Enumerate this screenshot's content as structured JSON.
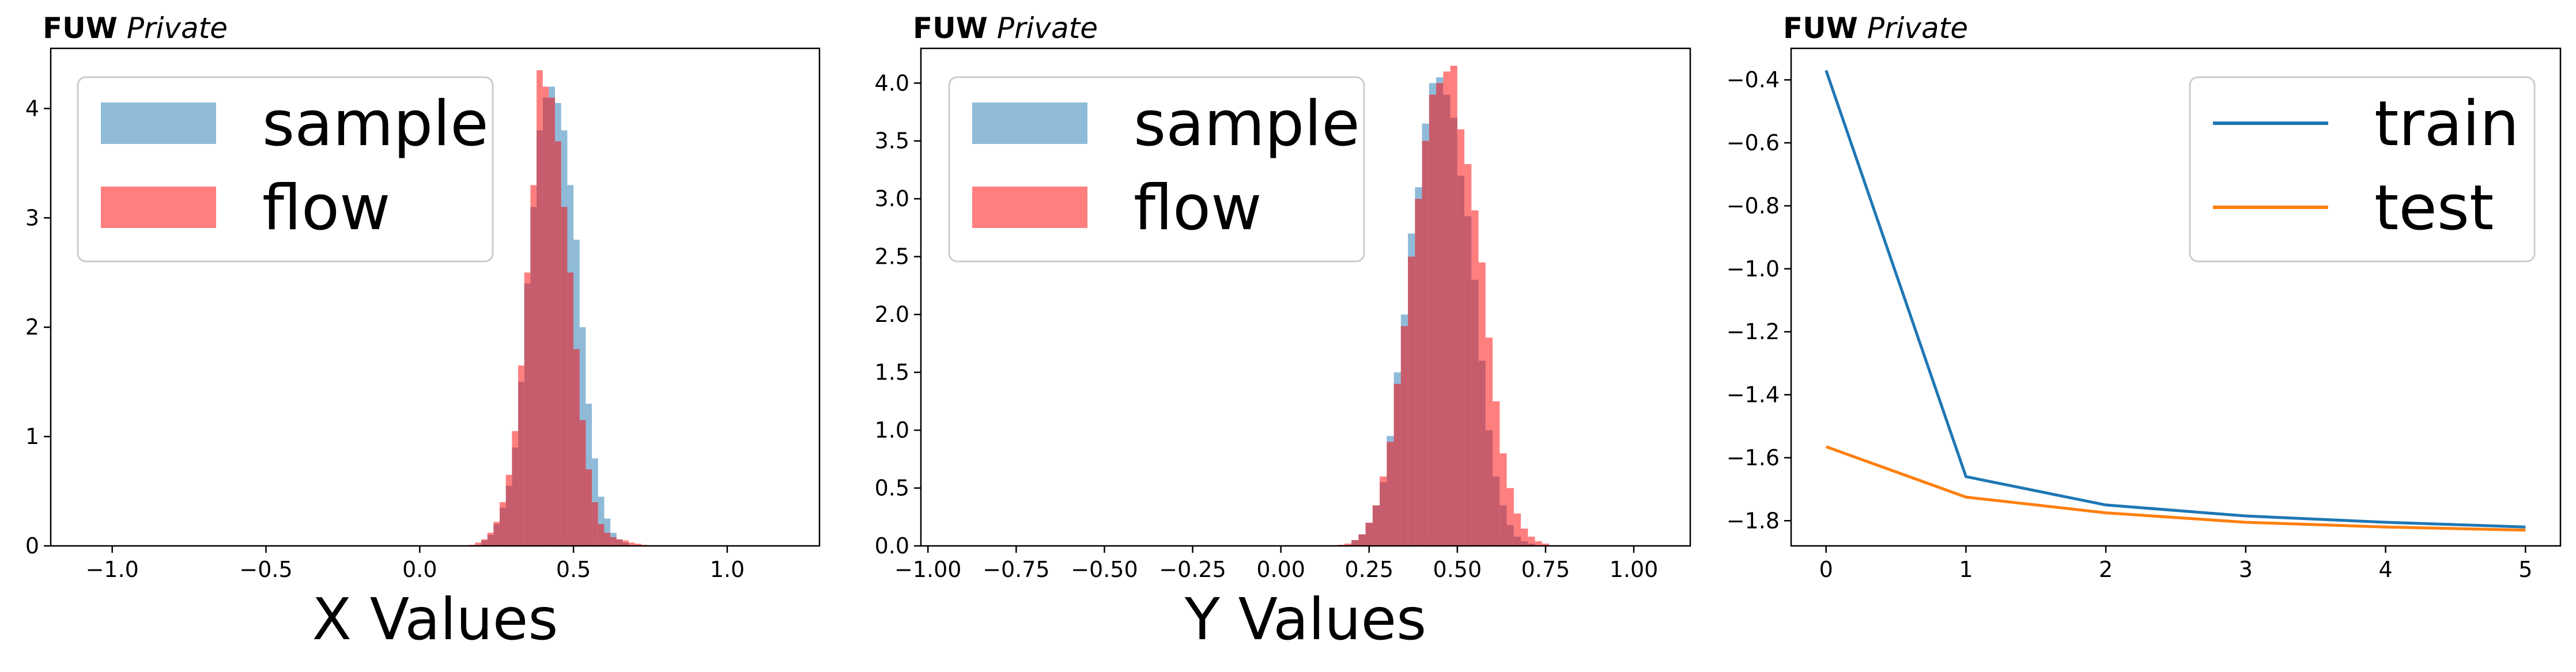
{
  "colors": {
    "sample": "#1f77b4",
    "flow": "#ff0000",
    "train": "#1f77b4",
    "test": "#ff7f0e"
  },
  "chart_data": [
    {
      "type": "bar",
      "subtype": "overlaid-histogram",
      "watermark_bold": "FUW",
      "watermark_italic": "Private",
      "xlabel": "X Values",
      "ylabel": "",
      "xlim": [
        -1.2,
        1.3
      ],
      "ylim": [
        0,
        4.55
      ],
      "xticks": [
        -1.0,
        -0.5,
        0.0,
        0.5,
        1.0
      ],
      "xtick_labels": [
        "−1.0",
        "−0.5",
        "0.0",
        "0.5",
        "1.0"
      ],
      "yticks": [
        0,
        1,
        2,
        3,
        4
      ],
      "ytick_labels": [
        "0",
        "1",
        "2",
        "3",
        "4"
      ],
      "legend_position": "upper-left",
      "bin_width": 0.02,
      "series": [
        {
          "name": "sample",
          "alpha": 0.5,
          "bins_start": 0.2,
          "values": [
            0.05,
            0.1,
            0.2,
            0.35,
            0.55,
            0.9,
            1.5,
            2.4,
            3.1,
            3.8,
            4.1,
            4.2,
            4.05,
            3.8,
            3.3,
            2.8,
            2.0,
            1.3,
            0.8,
            0.45,
            0.25,
            0.12,
            0.06,
            0.03
          ]
        },
        {
          "name": "flow",
          "alpha": 0.5,
          "bins_start": 0.16,
          "values": [
            0.01,
            0.03,
            0.06,
            0.12,
            0.22,
            0.4,
            0.65,
            1.05,
            1.65,
            2.5,
            3.3,
            4.35,
            4.2,
            4.1,
            3.7,
            3.1,
            2.5,
            1.8,
            1.15,
            0.7,
            0.4,
            0.2,
            0.12,
            0.08,
            0.06,
            0.05,
            0.03,
            0.02,
            0.01
          ]
        }
      ]
    },
    {
      "type": "bar",
      "subtype": "overlaid-histogram",
      "watermark_bold": "FUW",
      "watermark_italic": "Private",
      "xlabel": "Y Values",
      "ylabel": "",
      "xlim": [
        -1.02,
        1.16
      ],
      "ylim": [
        0,
        4.3
      ],
      "xticks": [
        -1.0,
        -0.75,
        -0.5,
        -0.25,
        0.0,
        0.25,
        0.5,
        0.75,
        1.0
      ],
      "xtick_labels": [
        "−1.00",
        "−0.75",
        "−0.50",
        "−0.25",
        "0.00",
        "0.25",
        "0.50",
        "0.75",
        "1.00"
      ],
      "yticks": [
        0,
        0.5,
        1.0,
        1.5,
        2.0,
        2.5,
        3.0,
        3.5,
        4.0
      ],
      "ytick_labels": [
        "0.0",
        "0.5",
        "1.0",
        "1.5",
        "2.0",
        "2.5",
        "3.0",
        "3.5",
        "4.0"
      ],
      "legend_position": "upper-left",
      "bin_width": 0.02,
      "series": [
        {
          "name": "sample",
          "alpha": 0.5,
          "bins_start": 0.2,
          "values": [
            0.05,
            0.1,
            0.2,
            0.35,
            0.55,
            0.95,
            1.5,
            2.0,
            2.7,
            3.1,
            3.65,
            4.0,
            4.05,
            3.9,
            3.7,
            3.2,
            2.85,
            2.3,
            1.6,
            1.0,
            0.6,
            0.35,
            0.18,
            0.08,
            0.04,
            0.02
          ]
        },
        {
          "name": "flow",
          "alpha": 0.5,
          "bins_start": 0.16,
          "values": [
            0.01,
            0.02,
            0.05,
            0.1,
            0.2,
            0.35,
            0.6,
            0.9,
            1.4,
            1.9,
            2.5,
            3.0,
            3.5,
            3.9,
            4.0,
            4.1,
            4.15,
            3.6,
            3.3,
            2.9,
            2.45,
            1.8,
            1.25,
            0.8,
            0.5,
            0.28,
            0.15,
            0.08,
            0.04,
            0.02
          ]
        }
      ]
    },
    {
      "type": "line",
      "watermark_bold": "FUW",
      "watermark_italic": "Private",
      "xlabel": "",
      "ylabel": "",
      "xlim": [
        -0.25,
        5.25
      ],
      "ylim": [
        -1.88,
        -0.3
      ],
      "xticks": [
        0,
        1,
        2,
        3,
        4,
        5
      ],
      "xtick_labels": [
        "0",
        "1",
        "2",
        "3",
        "4",
        "5"
      ],
      "yticks": [
        -1.8,
        -1.6,
        -1.4,
        -1.2,
        -1.0,
        -0.8,
        -0.6,
        -0.4
      ],
      "ytick_labels": [
        "−1.8",
        "−1.6",
        "−1.4",
        "−1.2",
        "−1.0",
        "−0.8",
        "−0.6",
        "−0.4"
      ],
      "legend_position": "upper-right",
      "x": [
        0,
        1,
        2,
        3,
        4,
        5
      ],
      "series": [
        {
          "name": "train",
          "values": [
            -0.37,
            -1.66,
            -1.75,
            -1.785,
            -1.805,
            -1.82
          ]
        },
        {
          "name": "test",
          "values": [
            -1.565,
            -1.725,
            -1.775,
            -1.805,
            -1.82,
            -1.83
          ]
        }
      ]
    }
  ]
}
